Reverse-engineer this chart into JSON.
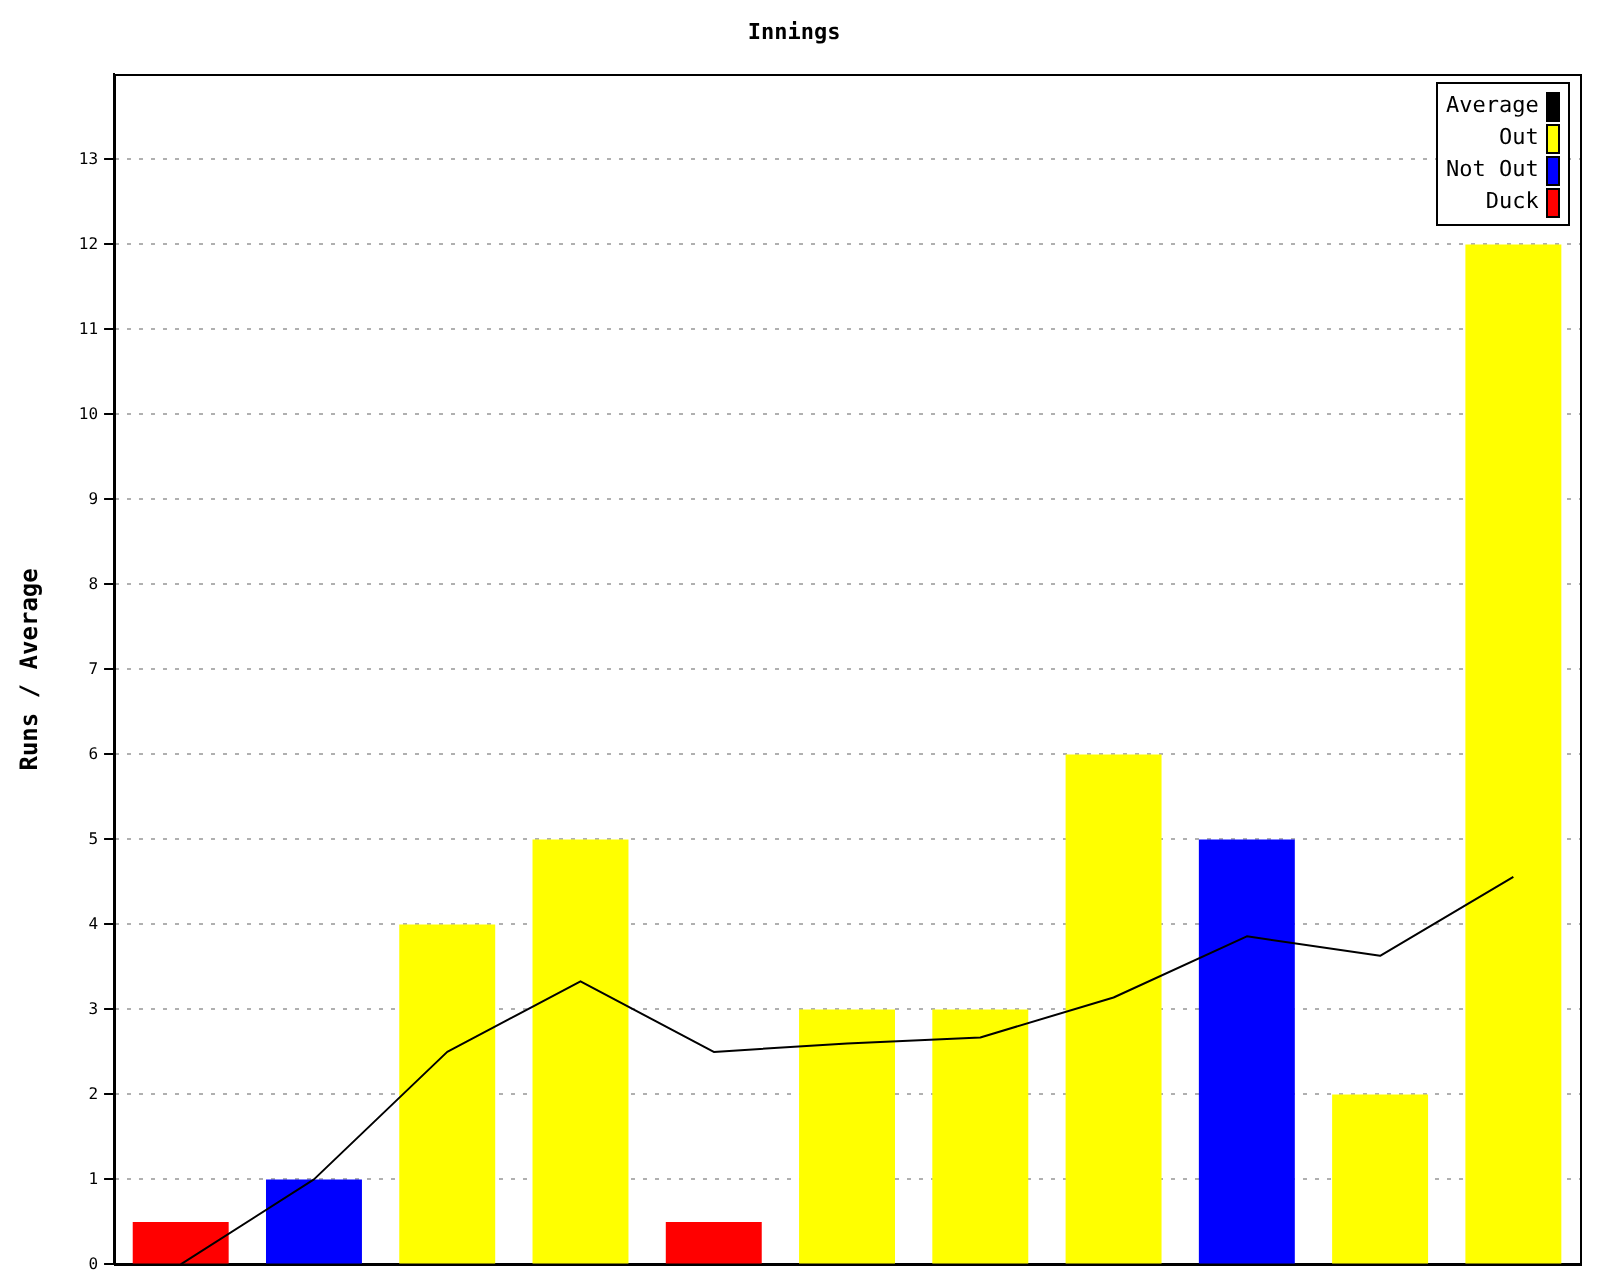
{
  "chart_data": {
    "type": "bar",
    "title": "Innings",
    "ylabel": "Runs / Average",
    "categories": [
      null,
      null,
      null,
      null,
      null,
      null,
      null,
      null,
      null,
      null,
      null
    ],
    "stacked": true,
    "series": [
      {
        "name": "Average",
        "type": "line",
        "color": "#000000",
        "values": [
          0,
          1,
          2.5,
          3.33,
          2.5,
          2.6,
          2.67,
          3.14,
          3.86,
          3.63,
          4.56
        ]
      },
      {
        "name": "Out",
        "color": "#ffff00",
        "values": [
          null,
          null,
          4,
          5,
          null,
          3,
          3,
          6,
          null,
          2,
          12
        ]
      },
      {
        "name": "Not Out",
        "color": "#0000ff",
        "values": [
          null,
          1,
          null,
          null,
          null,
          null,
          null,
          null,
          5,
          null,
          null
        ]
      },
      {
        "name": "Duck",
        "color": "#ff0000",
        "values": [
          0.5,
          null,
          null,
          null,
          0.5,
          null,
          null,
          null,
          null,
          null,
          null
        ]
      }
    ],
    "ylim": [
      0,
      14
    ],
    "yticks": [
      0,
      1,
      2,
      3,
      4,
      5,
      6,
      7,
      8,
      9,
      10,
      11,
      12,
      13
    ],
    "grid": "y",
    "legend": "top right",
    "marker": "none",
    "line_style": "solid",
    "tick_labels": "y"
  }
}
